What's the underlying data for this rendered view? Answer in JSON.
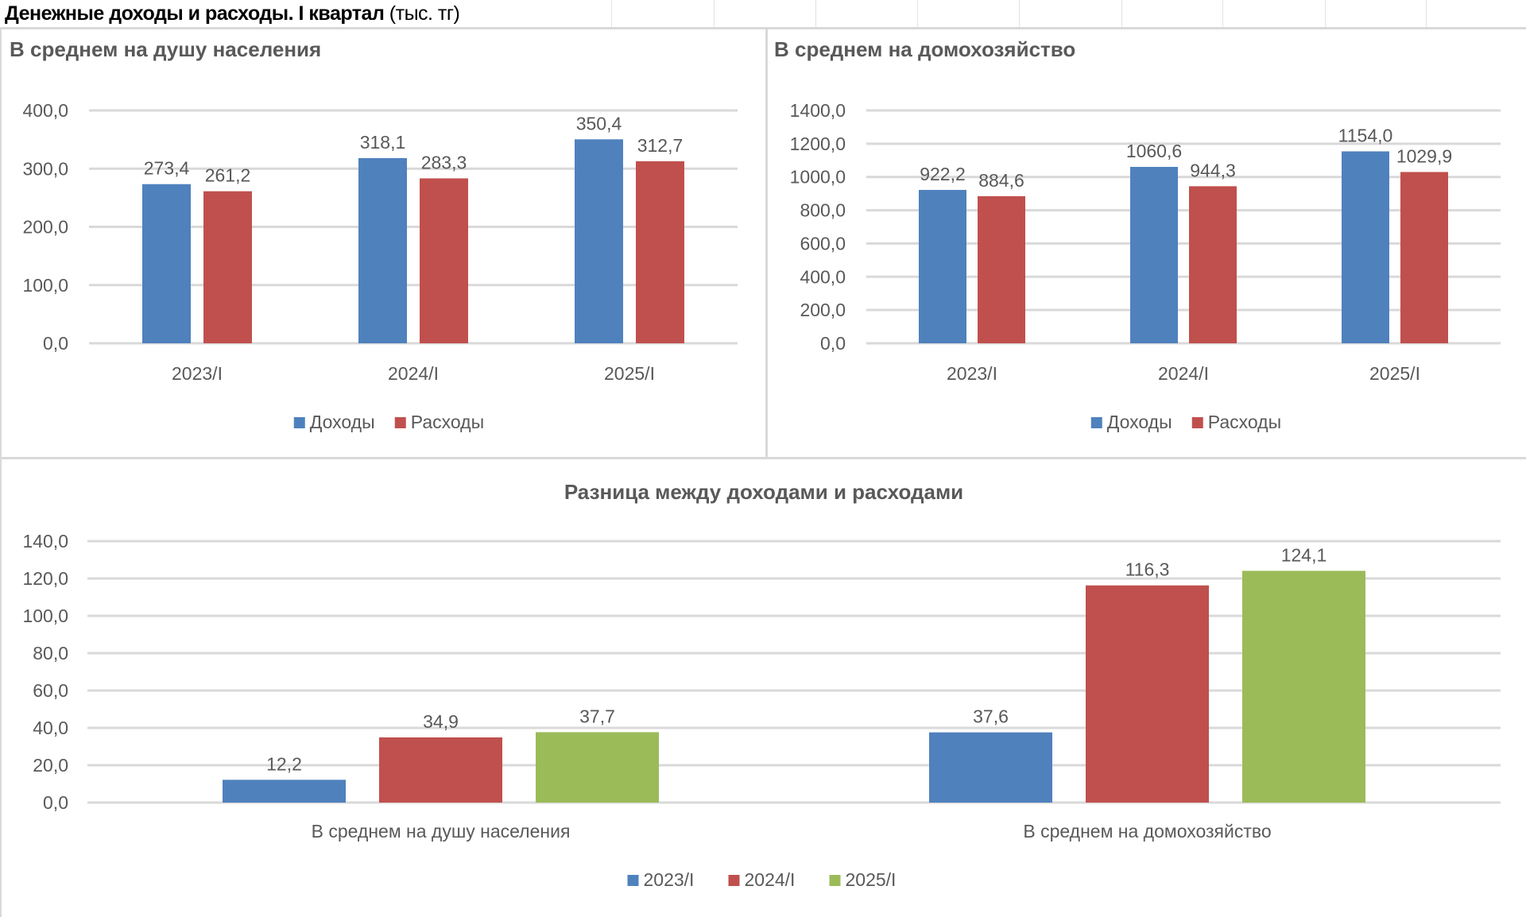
{
  "header": {
    "title_bold": "Денежные доходы и расходы. I квартал",
    "title_unit": "(тыс. тг)"
  },
  "colors": {
    "blue": "#4F81BD",
    "red": "#C0504D",
    "green": "#9BBB59",
    "grid": "#D9D9D9",
    "text": "#595959"
  },
  "chart_data": [
    {
      "id": "per-capita",
      "type": "bar",
      "title": "В среднем на душу населения",
      "categories": [
        "2023/I",
        "2024/I",
        "2025/I"
      ],
      "series": [
        {
          "name": "Доходы",
          "color": "#4F81BD",
          "values": [
            273.4,
            318.1,
            350.4
          ],
          "labels": [
            "273,4",
            "318,1",
            "350,4"
          ]
        },
        {
          "name": "Расходы",
          "color": "#C0504D",
          "values": [
            261.2,
            283.3,
            312.7
          ],
          "labels": [
            "261,2",
            "283,3",
            "312,7"
          ]
        }
      ],
      "ylim": [
        0,
        400
      ],
      "yticks": [
        0,
        100,
        200,
        300,
        400
      ],
      "ytick_labels": [
        "0,0",
        "100,0",
        "200,0",
        "300,0",
        "400,0"
      ],
      "xlabel": "",
      "ylabel": "",
      "grid": true,
      "legend": "bottom"
    },
    {
      "id": "per-household",
      "type": "bar",
      "title": "В среднем на домохозяйство",
      "categories": [
        "2023/I",
        "2024/I",
        "2025/I"
      ],
      "series": [
        {
          "name": "Доходы",
          "color": "#4F81BD",
          "values": [
            922.2,
            1060.6,
            1154.0
          ],
          "labels": [
            "922,2",
            "1060,6",
            "1154,0"
          ]
        },
        {
          "name": "Расходы",
          "color": "#C0504D",
          "values": [
            884.6,
            944.3,
            1029.9
          ],
          "labels": [
            "884,6",
            "944,3",
            "1029,9"
          ]
        }
      ],
      "ylim": [
        0,
        1400
      ],
      "yticks": [
        0,
        200,
        400,
        600,
        800,
        1000,
        1200,
        1400
      ],
      "ytick_labels": [
        "0,0",
        "200,0",
        "400,0",
        "600,0",
        "800,0",
        "1000,0",
        "1200,0",
        "1400,0"
      ],
      "xlabel": "",
      "ylabel": "",
      "grid": true,
      "legend": "bottom"
    },
    {
      "id": "difference",
      "type": "bar",
      "title": "Разница между доходами и расходами",
      "categories": [
        "В среднем на душу населения",
        "В среднем на домохозяйство"
      ],
      "series": [
        {
          "name": "2023/I",
          "color": "#4F81BD",
          "values": [
            12.2,
            37.6
          ],
          "labels": [
            "12,2",
            "37,6"
          ]
        },
        {
          "name": "2024/I",
          "color": "#C0504D",
          "values": [
            34.9,
            116.3
          ],
          "labels": [
            "34,9",
            "116,3"
          ]
        },
        {
          "name": "2025/I",
          "color": "#9BBB59",
          "values": [
            37.7,
            124.1
          ],
          "labels": [
            "37,7",
            "124,1"
          ]
        }
      ],
      "ylim": [
        0,
        140
      ],
      "yticks": [
        0,
        20,
        40,
        60,
        80,
        100,
        120,
        140
      ],
      "ytick_labels": [
        "0,0",
        "20,0",
        "40,0",
        "60,0",
        "80,0",
        "100,0",
        "120,0",
        "140,0"
      ],
      "xlabel": "",
      "ylabel": "",
      "grid": true,
      "legend": "bottom"
    }
  ]
}
